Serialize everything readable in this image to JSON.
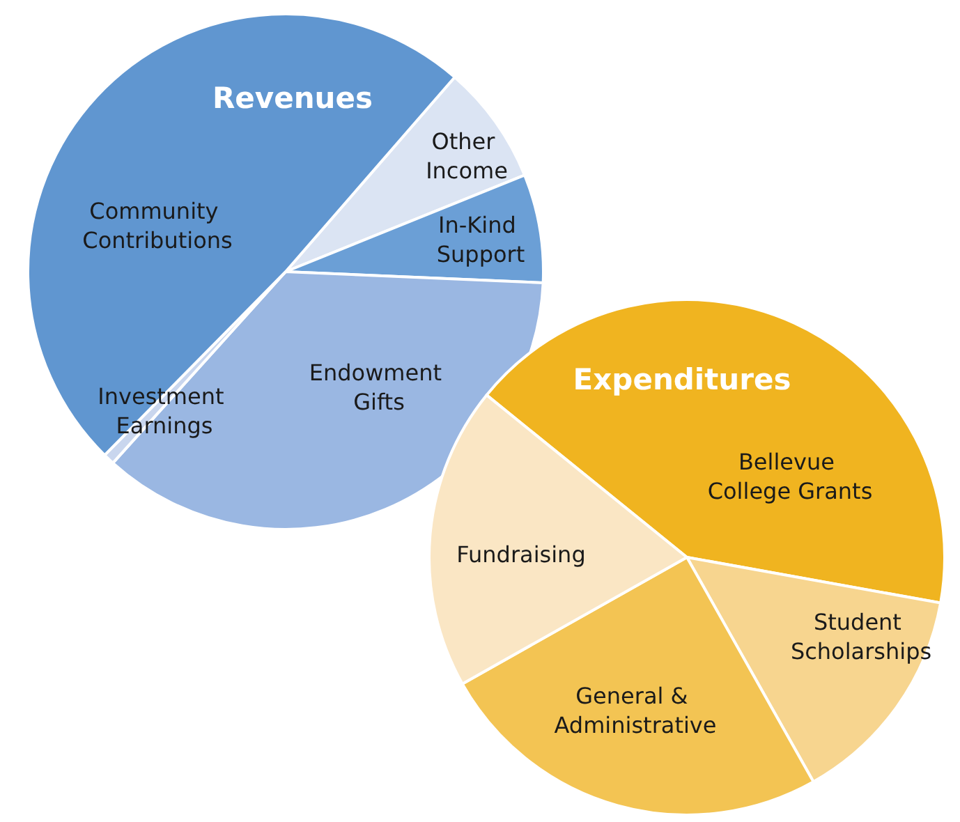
{
  "chart_data": [
    {
      "type": "pie",
      "title": "Revenues",
      "categories": [
        "Other Income",
        "In-Kind Support",
        "Endowment Gifts",
        "Investment Earnings",
        "Community Contributions"
      ],
      "values": [
        7.5,
        6.8,
        36,
        0.7,
        49
      ],
      "colors": [
        "#dbe4f3",
        "#6b9fd6",
        "#9ab7e2",
        "#c9d6ee",
        "#6096d0"
      ]
    },
    {
      "type": "pie",
      "title": "Expenditures",
      "categories": [
        "Bellevue College Grants",
        "Student Scholarships",
        "General & Administrative",
        "Fundraising"
      ],
      "values": [
        42,
        14,
        25,
        19
      ],
      "colors": [
        "#f0b420",
        "#f7d58f",
        "#f3c453",
        "#fae6c4"
      ]
    }
  ]
}
